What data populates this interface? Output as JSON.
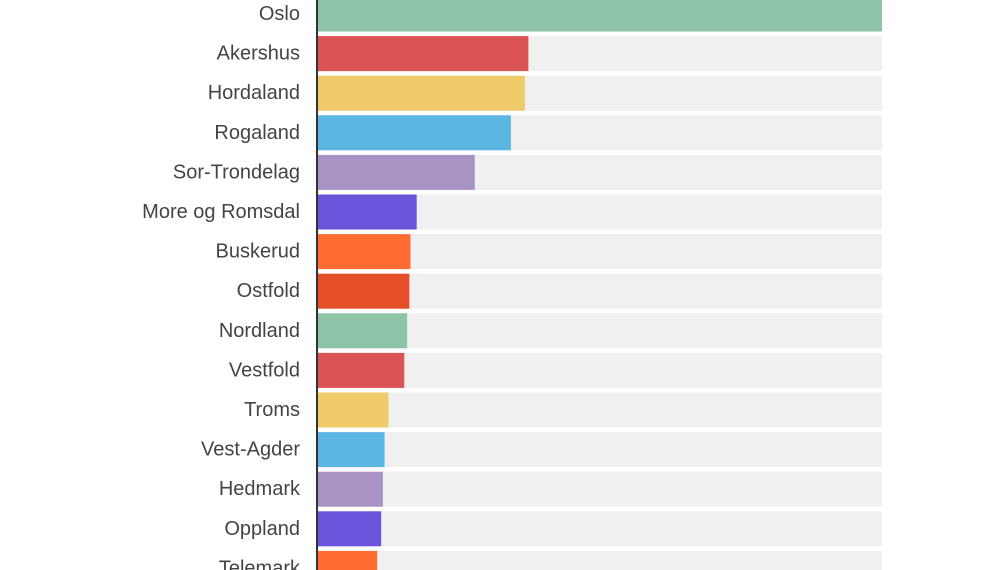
{
  "chart_data": {
    "type": "bar",
    "orientation": "horizontal",
    "title": "",
    "xlabel": "",
    "ylabel": "",
    "categories": [
      "Oslo",
      "Akershus",
      "Hordaland",
      "Rogaland",
      "Sor-Trondelag",
      "More og Romsdal",
      "Buskerud",
      "Ostfold",
      "Nordland",
      "Vestfold",
      "Troms",
      "Vest-Agder",
      "Hedmark",
      "Oppland",
      "Telemark"
    ],
    "values": [
      100,
      37.3,
      36.7,
      34.2,
      27.8,
      17.5,
      16.4,
      16.2,
      15.8,
      15.3,
      12.5,
      11.8,
      11.5,
      11.2,
      10.5
    ],
    "xlim": [
      0,
      100
    ],
    "grid": false,
    "legend": "none",
    "colors": [
      "#8dc3a7",
      "#dc5356",
      "#efcb6c",
      "#5cb6e4",
      "#a893c4",
      "#6b53dc",
      "#ff6d33",
      "#e5502a",
      "#8dc3a7",
      "#dc5356",
      "#efcb6c",
      "#5cb6e4",
      "#a893c4",
      "#6b53dc",
      "#ff6d33"
    ],
    "track_color": "#f0f0f0",
    "axis_color": "#333333"
  }
}
